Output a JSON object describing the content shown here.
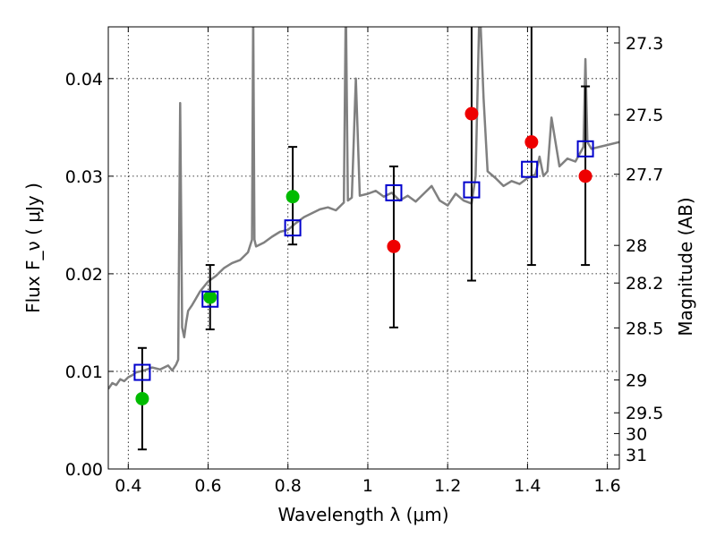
{
  "chart_data": {
    "type": "scatter",
    "xlabel": "Wavelength  λ (μm)",
    "ylabel": "Flux  F_ν  ( μJy )",
    "y2label": "Magnitude (AB)",
    "xlim": [
      0.35,
      1.63
    ],
    "ylim": [
      0.0,
      0.0453
    ],
    "grid": true,
    "x_ticks": [
      0.4,
      0.6,
      0.8,
      1.0,
      1.2,
      1.4,
      1.6
    ],
    "x_tick_labels": [
      "0.4",
      "0.6",
      "0.8",
      "1",
      "1.2",
      "1.4",
      "1.6"
    ],
    "y_ticks": [
      0.0,
      0.01,
      0.02,
      0.03,
      0.04
    ],
    "y_tick_labels": [
      "0.00",
      "0.01",
      "0.02",
      "0.03",
      "0.04"
    ],
    "y2_ticks": [
      27.3,
      27.5,
      27.7,
      28,
      28.2,
      28.5,
      29,
      29.5,
      30,
      31
    ],
    "y2_tick_labels": [
      "27.3",
      "27.5",
      "27.7",
      "28",
      "28.2",
      "28.5",
      "29",
      "29.5",
      "30",
      "31"
    ],
    "series": [
      {
        "kind": "line",
        "color": "#808080",
        "x": [
          0.35,
          0.36,
          0.37,
          0.38,
          0.39,
          0.4,
          0.41,
          0.42,
          0.44,
          0.46,
          0.48,
          0.5,
          0.51,
          0.52,
          0.525,
          0.53,
          0.535,
          0.54,
          0.545,
          0.55,
          0.56,
          0.57,
          0.58,
          0.6,
          0.62,
          0.64,
          0.66,
          0.68,
          0.7,
          0.71,
          0.713,
          0.716,
          0.72,
          0.74,
          0.76,
          0.78,
          0.8,
          0.82,
          0.84,
          0.86,
          0.88,
          0.9,
          0.92,
          0.94,
          0.945,
          0.95,
          0.96,
          0.97,
          0.98,
          1.0,
          1.02,
          1.04,
          1.06,
          1.08,
          1.1,
          1.12,
          1.14,
          1.16,
          1.18,
          1.2,
          1.22,
          1.24,
          1.26,
          1.27,
          1.28,
          1.29,
          1.3,
          1.32,
          1.34,
          1.36,
          1.38,
          1.4,
          1.42,
          1.43,
          1.44,
          1.45,
          1.46,
          1.48,
          1.5,
          1.52,
          1.54,
          1.545,
          1.55,
          1.56,
          1.58,
          1.6,
          1.63
        ],
        "y": [
          0.0082,
          0.0088,
          0.0086,
          0.0092,
          0.009,
          0.0094,
          0.0096,
          0.0099,
          0.0101,
          0.0104,
          0.0102,
          0.0106,
          0.0101,
          0.0107,
          0.0112,
          0.0375,
          0.0145,
          0.0135,
          0.015,
          0.0162,
          0.0168,
          0.0175,
          0.0182,
          0.0192,
          0.0198,
          0.0206,
          0.0211,
          0.0214,
          0.0222,
          0.0235,
          0.047,
          0.0235,
          0.0228,
          0.0232,
          0.0238,
          0.0243,
          0.0245,
          0.0252,
          0.0258,
          0.0262,
          0.0266,
          0.0268,
          0.0265,
          0.0273,
          0.048,
          0.0275,
          0.0278,
          0.04,
          0.028,
          0.0282,
          0.0285,
          0.0279,
          0.0283,
          0.0275,
          0.028,
          0.0274,
          0.0282,
          0.029,
          0.0275,
          0.027,
          0.0282,
          0.0275,
          0.0272,
          0.03,
          0.048,
          0.038,
          0.0305,
          0.0298,
          0.029,
          0.0295,
          0.0292,
          0.0298,
          0.0302,
          0.032,
          0.03,
          0.0305,
          0.036,
          0.031,
          0.0318,
          0.0315,
          0.033,
          0.042,
          0.0335,
          0.0328,
          0.033,
          0.0332,
          0.0335
        ]
      },
      {
        "kind": "markers",
        "marker": "circle",
        "color": "#00bb00",
        "x": [
          0.435,
          0.605,
          0.812
        ],
        "y": [
          0.0072,
          0.0176,
          0.0279
        ]
      },
      {
        "kind": "markers",
        "marker": "circle",
        "color": "#ee0000",
        "x": [
          1.065,
          1.26,
          1.41,
          1.545
        ],
        "y": [
          0.0228,
          0.0364,
          0.0335,
          0.03
        ]
      },
      {
        "kind": "markers",
        "marker": "open-square",
        "color": "#0000cc",
        "x": [
          0.435,
          0.605,
          0.812,
          1.065,
          1.26,
          1.405,
          1.545
        ],
        "y": [
          0.0099,
          0.0174,
          0.0247,
          0.0283,
          0.0286,
          0.0307,
          0.0328
        ]
      }
    ],
    "error_bars": {
      "color": "#000000",
      "x": [
        0.435,
        0.605,
        0.812,
        1.065,
        1.26,
        1.41,
        1.545
      ],
      "low": [
        0.002,
        0.0143,
        0.023,
        0.0145,
        0.0193,
        0.0209,
        0.0209
      ],
      "high": [
        0.0124,
        0.0209,
        0.033,
        0.031,
        0.05,
        0.05,
        0.0392
      ]
    }
  }
}
